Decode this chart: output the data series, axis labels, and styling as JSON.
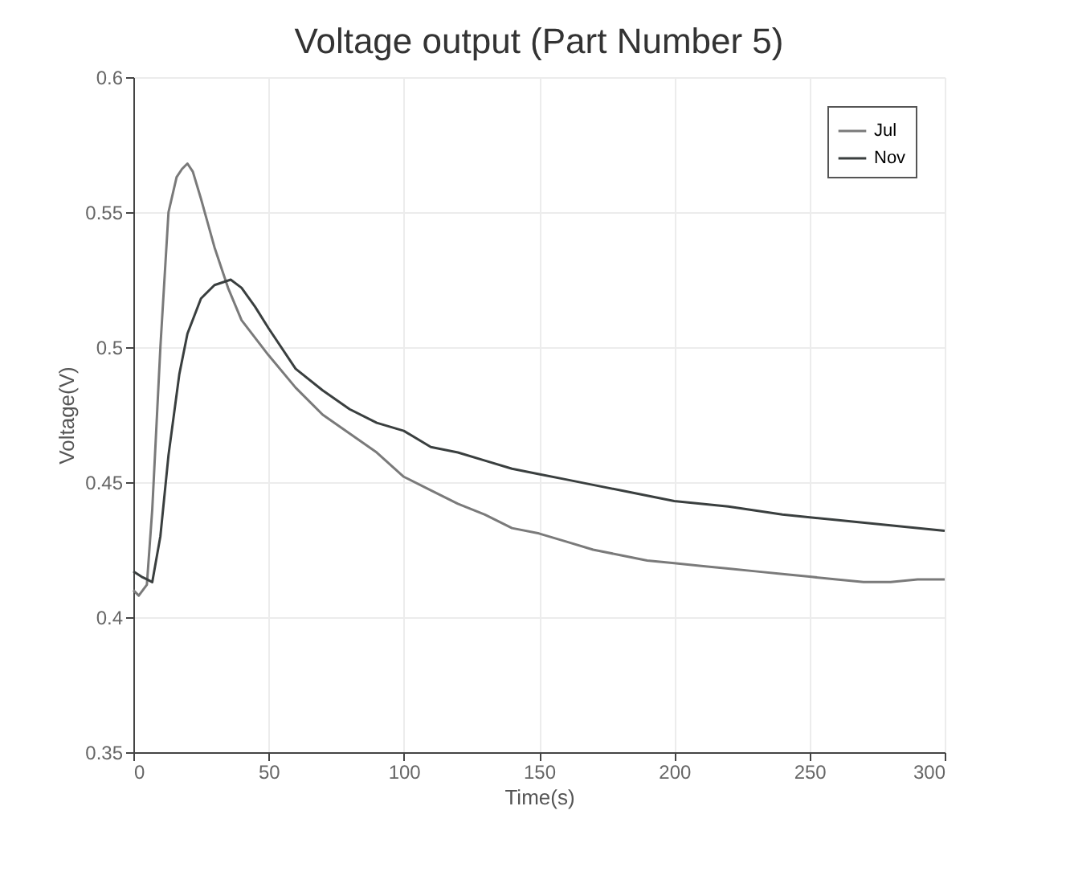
{
  "chart_data": {
    "type": "line",
    "title": "Voltage output (Part Number 5)",
    "xlabel": "Time(s)",
    "ylabel": "Voltage(V)",
    "xlim": [
      0,
      300
    ],
    "xticks": [
      0,
      50,
      100,
      150,
      200,
      250,
      300
    ],
    "ylim": [
      0.35,
      0.6
    ],
    "yticks": [
      0.35,
      0.4,
      0.45,
      0.5,
      0.55,
      0.6
    ],
    "grid": true,
    "legend": "top right",
    "line_style": "solid",
    "series": [
      {
        "name": "Jul",
        "color": "#7a7a7a",
        "x": [
          0,
          2,
          5,
          7,
          10,
          13,
          16,
          18,
          20,
          22,
          25,
          30,
          35,
          40,
          50,
          60,
          70,
          80,
          90,
          100,
          110,
          120,
          130,
          140,
          150,
          160,
          170,
          180,
          190,
          200,
          210,
          220,
          230,
          240,
          250,
          260,
          270,
          280,
          290,
          300
        ],
        "values": [
          0.41,
          0.408,
          0.412,
          0.44,
          0.5,
          0.55,
          0.563,
          0.566,
          0.568,
          0.565,
          0.555,
          0.537,
          0.522,
          0.51,
          0.497,
          0.485,
          0.475,
          0.468,
          0.461,
          0.452,
          0.447,
          0.442,
          0.438,
          0.433,
          0.431,
          0.428,
          0.425,
          0.423,
          0.421,
          0.42,
          0.419,
          0.418,
          0.417,
          0.416,
          0.415,
          0.414,
          0.413,
          0.413,
          0.414,
          0.414
        ]
      },
      {
        "name": "Nov",
        "color": "#3a3f3f",
        "x": [
          0,
          3,
          5,
          7,
          10,
          13,
          17,
          20,
          25,
          30,
          36,
          40,
          45,
          50,
          60,
          70,
          80,
          90,
          100,
          110,
          120,
          130,
          140,
          150,
          160,
          170,
          180,
          190,
          200,
          220,
          240,
          260,
          280,
          300
        ],
        "values": [
          0.417,
          0.415,
          0.414,
          0.413,
          0.43,
          0.46,
          0.49,
          0.505,
          0.518,
          0.523,
          0.525,
          0.522,
          0.515,
          0.507,
          0.492,
          0.484,
          0.477,
          0.472,
          0.469,
          0.463,
          0.461,
          0.458,
          0.455,
          0.453,
          0.451,
          0.449,
          0.447,
          0.445,
          0.443,
          0.441,
          0.438,
          0.436,
          0.434,
          0.432
        ]
      }
    ]
  }
}
